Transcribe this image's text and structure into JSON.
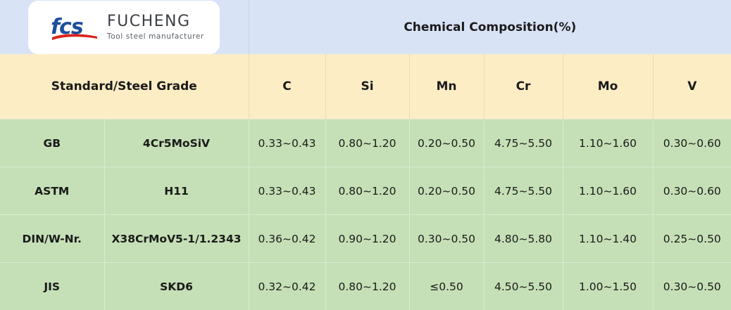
{
  "logo": {
    "mark": "fcs",
    "brand": "FUCHENG",
    "tagline": "Tool steel manufacturer",
    "mark_color": "#1d4e9e",
    "swoosh_color": "#d9241b"
  },
  "header": {
    "title": "Chemical Composition(%)"
  },
  "columns": {
    "standard": "Standard/Steel Grade",
    "elements": [
      "C",
      "Si",
      "Mn",
      "Cr",
      "Mo",
      "V"
    ]
  },
  "rows": [
    {
      "standard": "GB",
      "grade": "4Cr5MoSiV",
      "values": [
        "0.33~0.43",
        "0.80~1.20",
        "0.20~0.50",
        "4.75~5.50",
        "1.10~1.60",
        "0.30~0.60"
      ]
    },
    {
      "standard": "ASTM",
      "grade": "H11",
      "values": [
        "0.33~0.43",
        "0.80~1.20",
        "0.20~0.50",
        "4.75~5.50",
        "1.10~1.60",
        "0.30~0.60"
      ]
    },
    {
      "standard": "DIN/W-Nr.",
      "grade": "X38CrMoV5-1/1.2343",
      "values": [
        "0.36~0.42",
        "0.90~1.20",
        "0.30~0.50",
        "4.80~5.80",
        "1.10~1.40",
        "0.25~0.50"
      ]
    },
    {
      "standard": "JIS",
      "grade": "SKD6",
      "values": [
        "0.32~0.42",
        "0.80~1.20",
        "≤0.50",
        "4.50~5.50",
        "1.00~1.50",
        "0.30~0.50"
      ]
    }
  ],
  "colors": {
    "header_bg": "#d9e3f6",
    "column_header_bg": "#fdedc5",
    "data_bg": "#c5e0b6"
  }
}
